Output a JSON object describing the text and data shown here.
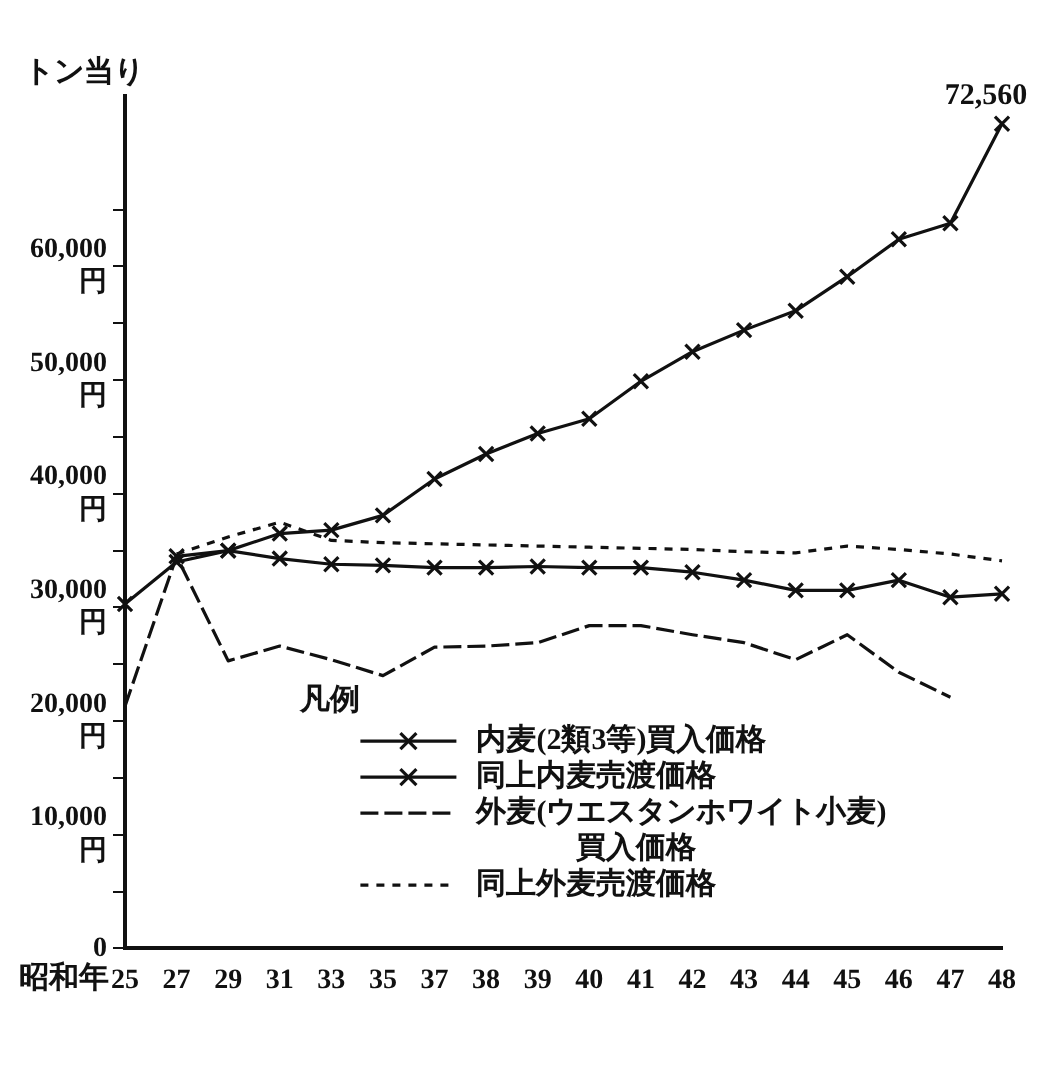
{
  "chart_data": {
    "type": "line",
    "ylabel": "トン当り",
    "xlabel": "昭和年",
    "legend_title": "凡例",
    "legend": "bottom",
    "grid": false,
    "categories": [
      "25",
      "27",
      "29",
      "31",
      "33",
      "35",
      "37",
      "38",
      "39",
      "40",
      "41",
      "42",
      "43",
      "44",
      "45",
      "46",
      "47",
      "48"
    ],
    "ylim": [
      0,
      75000
    ],
    "yticks": [
      {
        "value": 0,
        "label": "0"
      },
      {
        "value": 5000,
        "label": null
      },
      {
        "value": 10000,
        "label": "10,000\n円"
      },
      {
        "value": 15000,
        "label": null
      },
      {
        "value": 20000,
        "label": "20,000\n円"
      },
      {
        "value": 25000,
        "label": null
      },
      {
        "value": 30000,
        "label": "30,000\n円"
      },
      {
        "value": 35000,
        "label": null
      },
      {
        "value": 40000,
        "label": "40,000\n円"
      },
      {
        "value": 45000,
        "label": null
      },
      {
        "value": 50000,
        "label": "50,000\n円"
      },
      {
        "value": 55000,
        "label": null
      },
      {
        "value": 60000,
        "label": "60,000\n円"
      },
      {
        "value": 65000,
        "label": null
      }
    ],
    "series": [
      {
        "name": "内麦(2類3等)買入価格",
        "color": "#111111",
        "marker": "cross",
        "line_style": "solid",
        "values": [
          30300,
          34000,
          35000,
          36500,
          36800,
          38100,
          41300,
          43500,
          45300,
          46600,
          49900,
          52500,
          54400,
          56100,
          59100,
          62400,
          63800,
          72560
        ]
      },
      {
        "name": "同上内麦売渡価格",
        "color": "#111111",
        "marker": "cross",
        "line_style": "solid",
        "values": [
          null,
          34500,
          35000,
          34300,
          33800,
          33700,
          33500,
          33500,
          33600,
          33500,
          33500,
          33100,
          32400,
          31500,
          31500,
          32400,
          30900,
          31200
        ]
      },
      {
        "name": "外麦(ウエスタンホワイト小麦)買入価格",
        "color": "#111111",
        "marker": "none",
        "line_style": "dashed",
        "values": [
          21300,
          34500,
          25300,
          26600,
          25400,
          24000,
          26500,
          26600,
          26900,
          28400,
          28400,
          27600,
          26900,
          25400,
          27600,
          24300,
          22100,
          null
        ]
      },
      {
        "name": "同上外麦売渡価格",
        "color": "#111111",
        "marker": "none",
        "line_style": "dotted",
        "values": [
          null,
          34700,
          36200,
          37500,
          35900,
          35700,
          35600,
          35500,
          35400,
          35300,
          35200,
          35100,
          34900,
          34800,
          35400,
          35100,
          34700,
          34100
        ]
      }
    ],
    "annotations": [
      {
        "text": "72,560",
        "x": "48",
        "y": 72560
      }
    ]
  }
}
